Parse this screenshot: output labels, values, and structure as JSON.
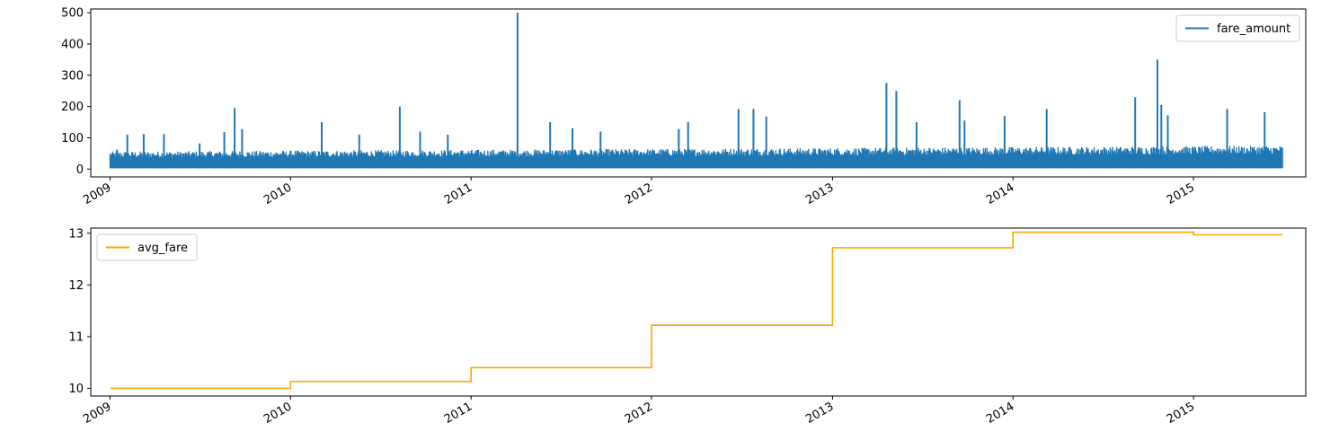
{
  "chart_data": [
    {
      "type": "line",
      "title": "",
      "xlabel": "",
      "ylabel": "",
      "x_range": [
        "2008-11-23",
        "2015-08-16"
      ],
      "ylim": [
        -25,
        512
      ],
      "grid": false,
      "legend_position": "top-right",
      "x_ticks": [
        "2009",
        "2010",
        "2011",
        "2012",
        "2013",
        "2014",
        "2015"
      ],
      "y_ticks": [
        0,
        100,
        200,
        300,
        400,
        500
      ],
      "series": [
        {
          "name": "fare_amount",
          "color": "#1f77b4",
          "x_start": "2009-01-01",
          "x_end": "2015-06-30",
          "band_low": 2.5,
          "band_high_range": [
            45,
            60
          ],
          "spikes": [
            {
              "date": "2009-01-15",
              "value": 62
            },
            {
              "date": "2009-02-05",
              "value": 110
            },
            {
              "date": "2009-03-10",
              "value": 112
            },
            {
              "date": "2009-04-20",
              "value": 112
            },
            {
              "date": "2009-07-01",
              "value": 82
            },
            {
              "date": "2009-08-20",
              "value": 118
            },
            {
              "date": "2009-09-10",
              "value": 195
            },
            {
              "date": "2009-09-25",
              "value": 128
            },
            {
              "date": "2010-03-05",
              "value": 150
            },
            {
              "date": "2010-05-20",
              "value": 110
            },
            {
              "date": "2010-08-10",
              "value": 200
            },
            {
              "date": "2010-09-20",
              "value": 120
            },
            {
              "date": "2010-11-15",
              "value": 110
            },
            {
              "date": "2011-04-05",
              "value": 500
            },
            {
              "date": "2011-06-10",
              "value": 150
            },
            {
              "date": "2011-07-25",
              "value": 130
            },
            {
              "date": "2011-09-20",
              "value": 120
            },
            {
              "date": "2012-02-25",
              "value": 128
            },
            {
              "date": "2012-03-15",
              "value": 150
            },
            {
              "date": "2012-06-25",
              "value": 192
            },
            {
              "date": "2012-07-25",
              "value": 192
            },
            {
              "date": "2012-08-20",
              "value": 168
            },
            {
              "date": "2013-04-20",
              "value": 275
            },
            {
              "date": "2013-05-10",
              "value": 250
            },
            {
              "date": "2013-06-20",
              "value": 150
            },
            {
              "date": "2013-09-15",
              "value": 220
            },
            {
              "date": "2013-09-25",
              "value": 155
            },
            {
              "date": "2013-12-15",
              "value": 170
            },
            {
              "date": "2014-03-10",
              "value": 192
            },
            {
              "date": "2014-09-05",
              "value": 230
            },
            {
              "date": "2014-10-20",
              "value": 350
            },
            {
              "date": "2014-10-28",
              "value": 205
            },
            {
              "date": "2014-11-10",
              "value": 172
            },
            {
              "date": "2015-03-10",
              "value": 192
            },
            {
              "date": "2015-05-25",
              "value": 182
            }
          ]
        }
      ]
    },
    {
      "type": "line",
      "title": "",
      "xlabel": "",
      "ylabel": "",
      "x_range": [
        "2008-11-23",
        "2015-08-16"
      ],
      "ylim": [
        9.85,
        13.1
      ],
      "grid": false,
      "legend_position": "top-left",
      "x_ticks": [
        "2009",
        "2010",
        "2011",
        "2012",
        "2013",
        "2014",
        "2015"
      ],
      "y_ticks": [
        10,
        11,
        12,
        13
      ],
      "series": [
        {
          "name": "avg_fare",
          "color": "#ffa500",
          "step": true,
          "x": [
            "2009-01-01",
            "2010-01-01",
            "2011-01-01",
            "2012-01-01",
            "2013-01-01",
            "2014-01-01",
            "2015-01-01",
            "2015-06-30"
          ],
          "y": [
            10.0,
            10.13,
            10.4,
            11.22,
            12.72,
            13.02,
            12.97,
            12.97
          ]
        }
      ]
    }
  ]
}
